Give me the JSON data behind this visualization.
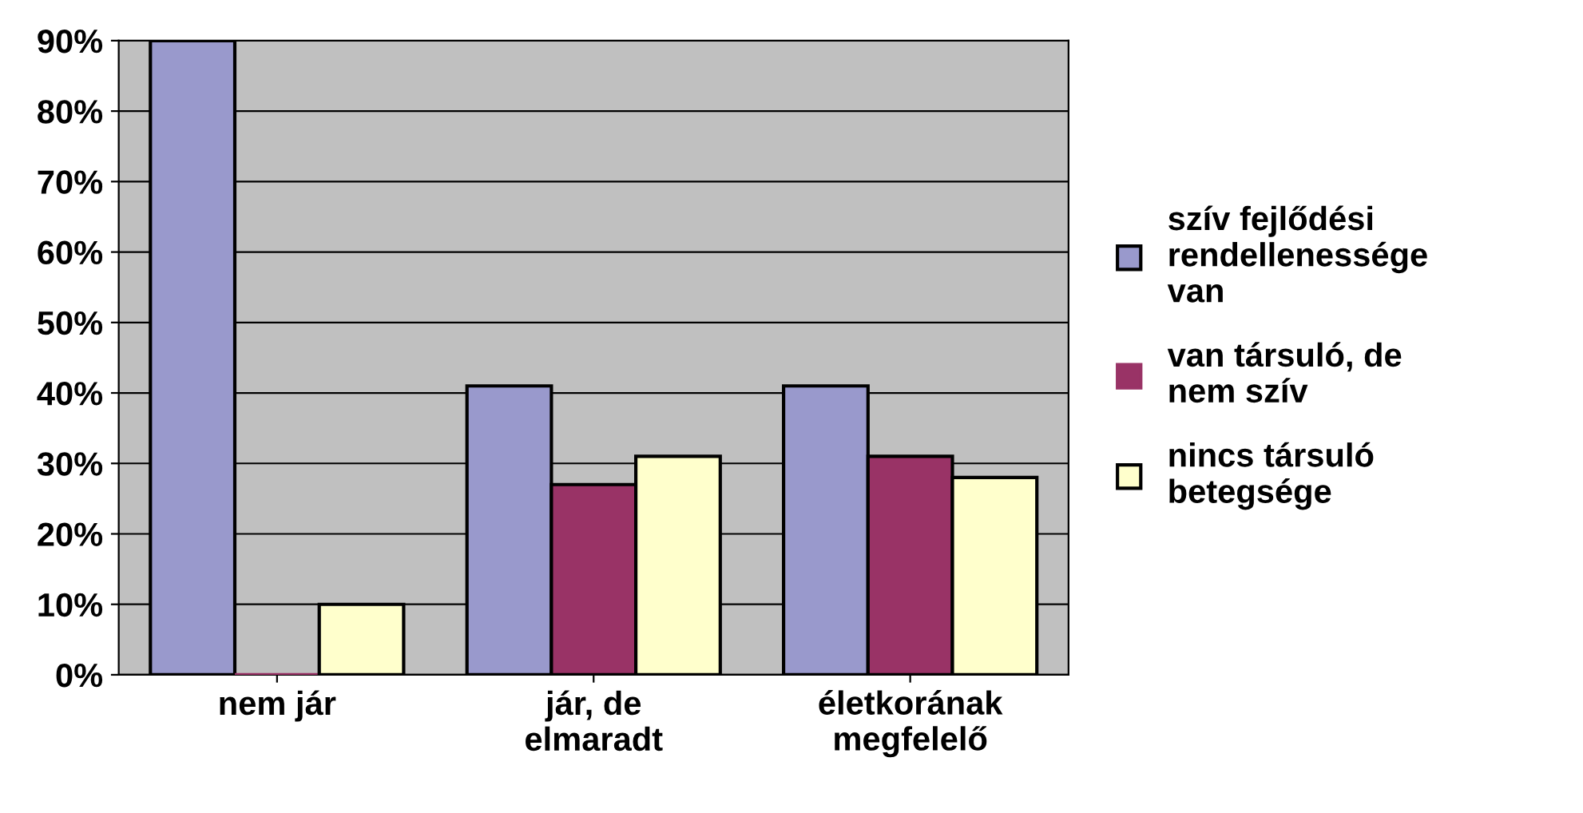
{
  "chart_data": {
    "type": "bar",
    "categories": [
      "nem jár",
      "jár, de\nelmaradt",
      "életkorának\nmegfelelő"
    ],
    "series": [
      {
        "name": "szív fejlődési\nrendellenessége\nvan",
        "color": "#9999cc",
        "values": [
          90,
          41,
          41
        ]
      },
      {
        "name": "van társuló, de\nnem szív",
        "color": "#993366",
        "values": [
          0,
          27,
          31
        ]
      },
      {
        "name": "nincs társuló\nbetegsége",
        "color": "#ffffcc",
        "values": [
          10,
          31,
          28
        ]
      }
    ],
    "ylim": [
      0,
      90
    ],
    "yticks": [
      {
        "value": 0,
        "label": "0%"
      },
      {
        "value": 10,
        "label": "10%"
      },
      {
        "value": 20,
        "label": "20%"
      },
      {
        "value": 30,
        "label": "30%"
      },
      {
        "value": 40,
        "label": "40%"
      },
      {
        "value": 50,
        "label": "50%"
      },
      {
        "value": 60,
        "label": "60%"
      },
      {
        "value": 70,
        "label": "70%"
      },
      {
        "value": 80,
        "label": "80%"
      },
      {
        "value": 90,
        "label": "90%"
      }
    ],
    "grid": "y",
    "legend": "right"
  }
}
